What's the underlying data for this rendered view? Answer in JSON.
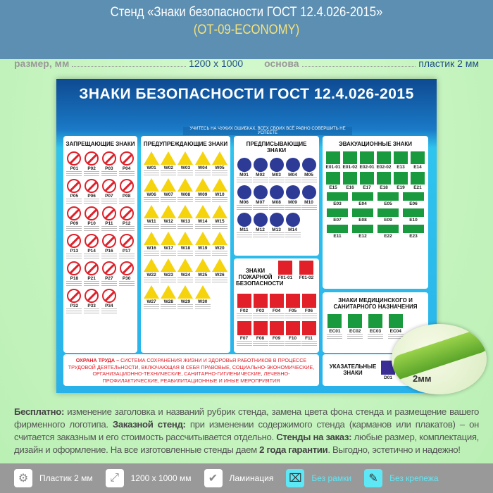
{
  "header": {
    "title": "Стенд «Знаки безопасности ГОСТ 12.4.026-2015»",
    "subtitle": "(ОТ-09-ECONOMY)"
  },
  "spec": {
    "size_label": "размер, мм",
    "size_value": "1200 х 1000",
    "base_label": "основа",
    "base_value": "пластик 2 мм"
  },
  "poster": {
    "title": "ЗНАКИ БЕЗОПАСНОСТИ ГОСТ 12.4.026-2015",
    "motto": "УЧИТЕСЬ НА ЧУЖИХ ОШИБКАХ, ВСЕХ СВОИХ ВСЁ РАВНО СОВЕРШИТЬ НЕ УСПЕЕТЕ",
    "panels": {
      "prohibition": {
        "title": "ЗАПРЕЩАЮЩИЕ ЗНАКИ",
        "codes": [
          "P01",
          "P02",
          "P03",
          "P04",
          "P05",
          "P06",
          "P07",
          "P08",
          "P09",
          "P10",
          "P11",
          "P12",
          "P13",
          "P14",
          "P16",
          "P17",
          "P18",
          "P21",
          "P27",
          "P30",
          "P32",
          "P33",
          "P34"
        ]
      },
      "warning": {
        "title": "ПРЕДУПРЕЖДАЮЩИЕ ЗНАКИ",
        "codes": [
          "W01",
          "W02",
          "W03",
          "W04",
          "W05",
          "W06",
          "W07",
          "W08",
          "W09",
          "W10",
          "W11",
          "W12",
          "W13",
          "W14",
          "W15",
          "W16",
          "W17",
          "W18",
          "W19",
          "W20",
          "W22",
          "W23",
          "W24",
          "W25",
          "W26",
          "W27",
          "W28",
          "W29",
          "W30"
        ]
      },
      "mandatory": {
        "title": "ПРЕДПИСЫВАЮЩИЕ ЗНАКИ",
        "codes": [
          "M01",
          "M02",
          "M03",
          "M04",
          "M05",
          "M06",
          "M07",
          "M08",
          "M09",
          "M10",
          "M11",
          "M12",
          "M13",
          "M14"
        ]
      },
      "evacuation": {
        "title": "ЭВАКУАЦИОННЫЕ ЗНАКИ",
        "codes_a": [
          "E01-01",
          "E01-02",
          "E02-01",
          "E02-02",
          "E13",
          "E14",
          "E15",
          "E16",
          "E17",
          "E18",
          "E19",
          "E21"
        ],
        "codes_b": [
          "E03",
          "E04",
          "E05",
          "E06",
          "E07",
          "E08",
          "E09",
          "E10",
          "E11",
          "E12",
          "E22",
          "E23"
        ]
      },
      "fire": {
        "title": "ЗНАКИ ПОЖАРНОЙ БЕЗОПАСНОСТИ",
        "codes_top": [
          "F01-01",
          "F01-02"
        ],
        "codes": [
          "F02",
          "F03",
          "F04",
          "F05",
          "F06",
          "F07",
          "F08",
          "F09",
          "F10",
          "F11"
        ]
      },
      "medical": {
        "title": "ЗНАКИ МЕДИЦИНСКОГО И САНИТАРНОГО НАЗНАЧЕНИЯ",
        "codes": [
          "EC01",
          "EC02",
          "EC03",
          "EC04"
        ]
      },
      "index": {
        "title": "УКАЗАТЕЛЬНЫЕ ЗНАКИ",
        "codes": [
          "D01"
        ]
      }
    },
    "ohrana_lead": "ОХРАНА ТРУДА –",
    "ohrana_text": "СИСТЕМА СОХРАНЕНИЯ ЖИЗНИ И ЗДОРОВЬЯ РАБОТНИКОВ В ПРОЦЕССЕ ТРУДОВОЙ ДЕЯТЕЛЬНОСТИ, ВКЛЮЧАЮЩАЯ В СЕБЯ ПРАВОВЫЕ, СОЦИАЛЬНО-ЭКОНОМИЧЕСКИЕ, ОРГАНИЗАЦИОННО-ТЕХНИЧЕСКИЕ, САНИТАРНО-ГИГИЕНИЧЕСКИЕ, ЛЕЧЕБНО-ПРОФИЛАКТИЧЕСКИЕ, РЕАБИЛИТАЦИОННЫЕ И ИНЫЕ МЕРОПРИЯТИЯ"
  },
  "badge": {
    "thickness": "2мм"
  },
  "description": {
    "b1": "Бесплатно:",
    "t1": " изменение заголовка и названий рубрик стенда, замена цвета фона стенда и размещение вашего фирменного логотипа. ",
    "b2": "Заказной стенд:",
    "t2": " при изменении содержимого стенда (карманов или плакатов) – он считается заказным и его стоимость рассчитывается отдельно. ",
    "b3": "Стенды на заказ:",
    "t3": " любые размер, комплектация, дизайн и оформление. На все изготовленные стенды даем ",
    "b4": "2 года гарантии",
    "t4": ". Выгодно, эстетично и надежно!"
  },
  "features": [
    {
      "icon": "gear-icon",
      "label": "Пластик 2 мм"
    },
    {
      "icon": "resize-icon",
      "label": "1200 х 1000 мм"
    },
    {
      "icon": "shield-icon",
      "label": "Ламинация"
    },
    {
      "icon": "no-frame-icon",
      "label": "Без рамки"
    },
    {
      "icon": "screw-icon",
      "label": "Без крепежа"
    }
  ]
}
